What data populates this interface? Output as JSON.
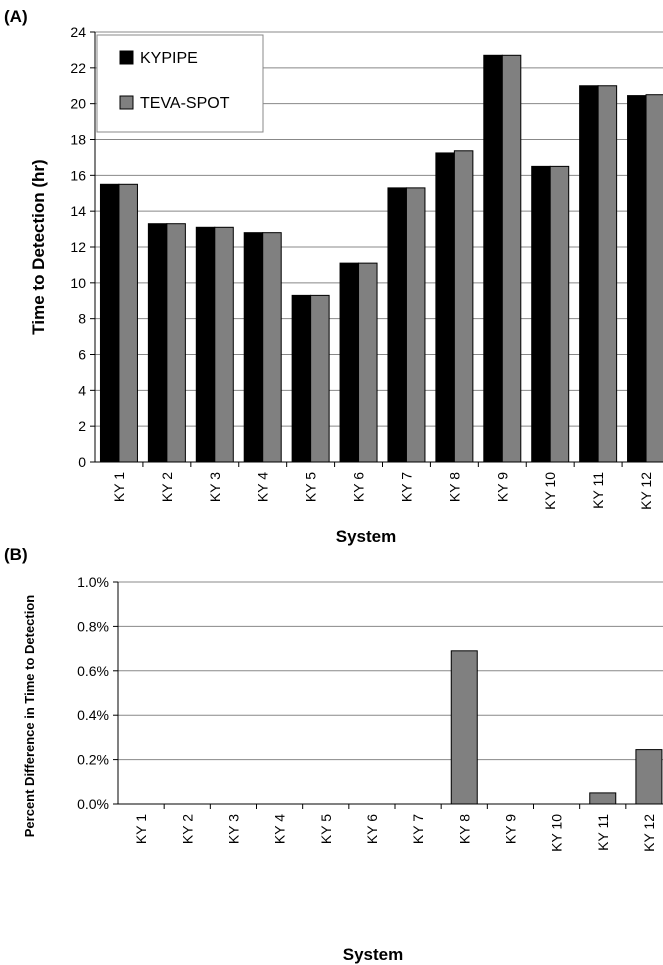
{
  "panel_a_label": "(A)",
  "panel_b_label": "(B)",
  "colors": {
    "kypipe": "#000000",
    "teva_spot": "#808080",
    "grid": "#888888",
    "axis": "#000000"
  },
  "chart_data": [
    {
      "type": "bar",
      "categories": [
        "KY 1",
        "KY 2",
        "KY 3",
        "KY 4",
        "KY 5",
        "KY 6",
        "KY 7",
        "KY 8",
        "KY 9",
        "KY 10",
        "KY 11",
        "KY 12"
      ],
      "series": [
        {
          "name": "KYPIPE",
          "values": [
            15.5,
            13.3,
            13.1,
            12.8,
            9.3,
            11.1,
            15.3,
            17.25,
            22.7,
            16.5,
            21.0,
            20.45
          ]
        },
        {
          "name": "TEVA-SPOT",
          "values": [
            15.5,
            13.3,
            13.1,
            12.8,
            9.3,
            11.1,
            15.3,
            17.37,
            22.7,
            16.5,
            21.0,
            20.5
          ]
        }
      ],
      "title": "",
      "xlabel": "System",
      "ylabel": "Time to Detection (hr)",
      "ylim": [
        0,
        24
      ],
      "yticks": [
        "0",
        "2",
        "4",
        "6",
        "8",
        "10",
        "12",
        "14",
        "16",
        "18",
        "20",
        "22",
        "24"
      ],
      "grid": true,
      "legend": "top-left"
    },
    {
      "type": "bar",
      "categories": [
        "KY 1",
        "KY 2",
        "KY 3",
        "KY 4",
        "KY 5",
        "KY 6",
        "KY 7",
        "KY 8",
        "KY 9",
        "KY 10",
        "KY 11",
        "KY 12"
      ],
      "series": [
        {
          "values": [
            0,
            0,
            0,
            0,
            0,
            0,
            0,
            0.0069,
            0,
            0,
            0.0005,
            0.00245
          ]
        }
      ],
      "title": "",
      "xlabel": "System",
      "ylabel": "Percent Difference in Time to Detection",
      "ylim": [
        0,
        0.01
      ],
      "yticks": [
        "0.0%",
        "0.2%",
        "0.4%",
        "0.6%",
        "0.8%",
        "1.0%"
      ],
      "grid": true
    }
  ]
}
